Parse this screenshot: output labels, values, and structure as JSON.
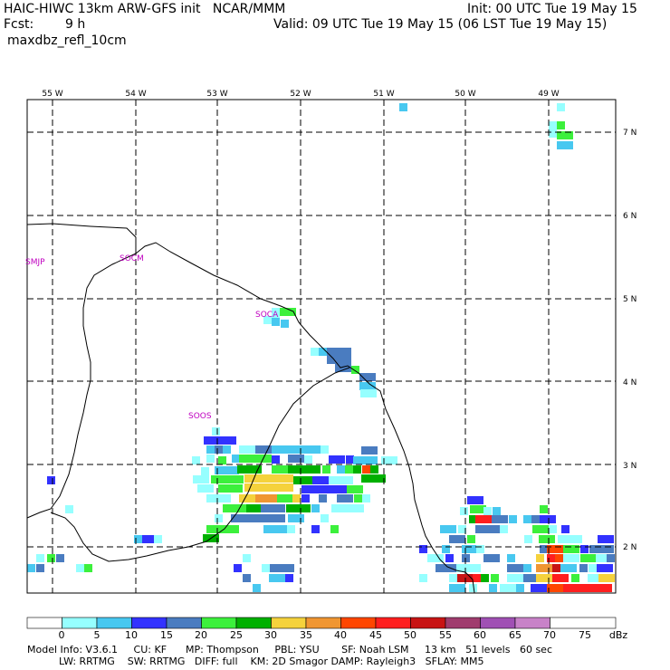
{
  "header": {
    "line1_left": "HAIC-HIWC 13km ARW-GFS init   NCAR/MMM",
    "line1_right": "Init: 00 UTC Tue 19 May 15",
    "fcst_label": "Fcst:",
    "fcst_value": "9 h",
    "valid": "Valid: 09 UTC Tue 19 May 15 (06 LST Tue 19 May 15)",
    "field": "maxdbz_refl_10cm"
  },
  "map": {
    "lon_labels": [
      "55 W",
      "54 W",
      "53 W",
      "52 W",
      "51 W",
      "50 W",
      "49 W"
    ],
    "lat_labels": [
      "7 N",
      "6 N",
      "5 N",
      "4 N",
      "3 N",
      "2 N"
    ],
    "stations": [
      "SMJP",
      "SOCM",
      "SOCA",
      "SOOS"
    ]
  },
  "colorbar": {
    "ticks": [
      "0",
      "5",
      "10",
      "15",
      "20",
      "25",
      "30",
      "35",
      "40",
      "45",
      "50",
      "55",
      "60",
      "65",
      "70",
      "75"
    ],
    "unit": "dBz",
    "colors": [
      "#ffffff",
      "#96ffff",
      "#48c8f0",
      "#3232ff",
      "#4a7cc0",
      "#3cf03c",
      "#00b000",
      "#f5d23c",
      "#f09632",
      "#ff4600",
      "#ff1e1e",
      "#c81414",
      "#a03c6e",
      "#a050b4",
      "#c882c8"
    ]
  },
  "footer": {
    "line1": "Model Info: V3.6.1     CU: KF      MP: Thompson     PBL: YSU       SF: Noah LSM     13 km   51 levels   60 sec",
    "line2": "          LW: RRTMG    SW: RRTMG   DIFF: full    KM: 2D Smagor DAMP: Rayleigh3   SFLAY: MM5"
  }
}
